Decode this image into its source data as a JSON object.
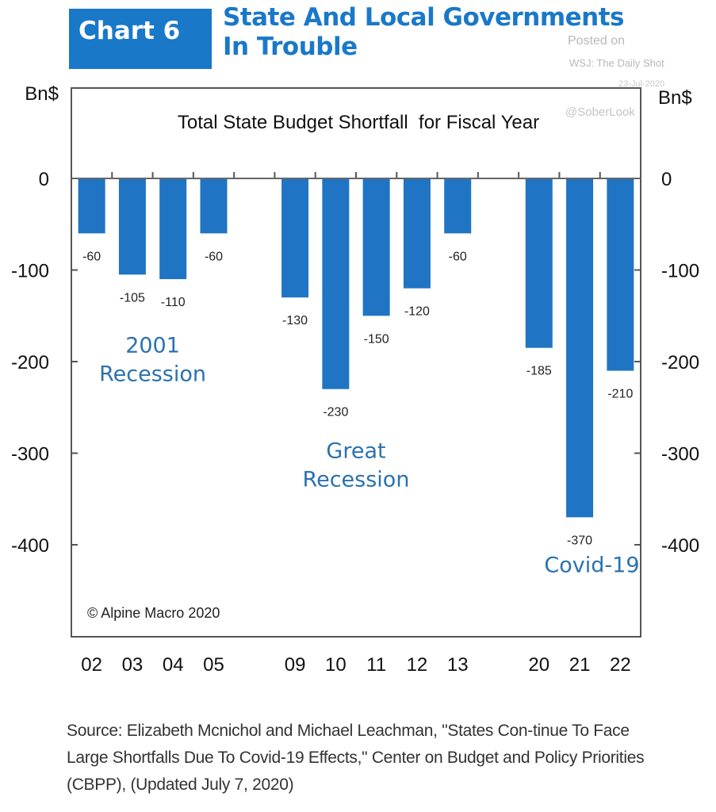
{
  "header": {
    "tag": "Chart 6",
    "title_line1": "State And Local Governments",
    "title_line2": "In Trouble"
  },
  "watermark": {
    "posted": "Posted on",
    "source": "WSJ: The Daily Shot",
    "date": "23-Jul-2020",
    "handle": "@SoberLook"
  },
  "colors": {
    "bar": "#1f75c4",
    "header_blue": "#1a78c8",
    "annotation": "#2a72b0"
  },
  "chart_data": {
    "type": "bar",
    "title": "Total State Budget Shortfall  for Fiscal Year",
    "xlabel": "",
    "ylabel": "Bn$",
    "ylabel_right": "Bn$",
    "ylim": [
      -500,
      100
    ],
    "yticks": [
      0,
      -100,
      -200,
      -300,
      -400
    ],
    "ytick_labels": [
      "0",
      "-100",
      "-200",
      "-300",
      "-400"
    ],
    "grid": false,
    "categories": [
      "02",
      "03",
      "04",
      "05",
      "",
      "09",
      "10",
      "11",
      "12",
      "13",
      "",
      "20",
      "21",
      "22"
    ],
    "values": [
      -60,
      -105,
      -110,
      -60,
      null,
      -130,
      -230,
      -150,
      -120,
      -60,
      null,
      -185,
      -370,
      -210
    ],
    "value_labels": [
      "-60",
      "-105",
      "-110",
      "-60",
      "",
      "-130",
      "-230",
      "-150",
      "-120",
      "-60",
      "",
      "-185",
      "-370",
      "-210"
    ],
    "annotations": [
      {
        "lines": [
          "2001",
          "Recession"
        ],
        "anchor_category_index": 1.5,
        "y": -190
      },
      {
        "lines": [
          "Great",
          "Recession"
        ],
        "anchor_category_index": 6.5,
        "y": -305
      },
      {
        "lines": [
          "Covid-19"
        ],
        "anchor_category_index": 12.3,
        "y": -430
      }
    ],
    "copyright": "© Alpine Macro 2020"
  },
  "source_text": "Source: Elizabeth Mcnichol and Michael Leachman, \"States Con-tinue To Face Large Shortfalls Due To Covid-19 Effects,\" Center on Budget and Policy Priorities (CBPP), (Updated July 7, 2020)"
}
